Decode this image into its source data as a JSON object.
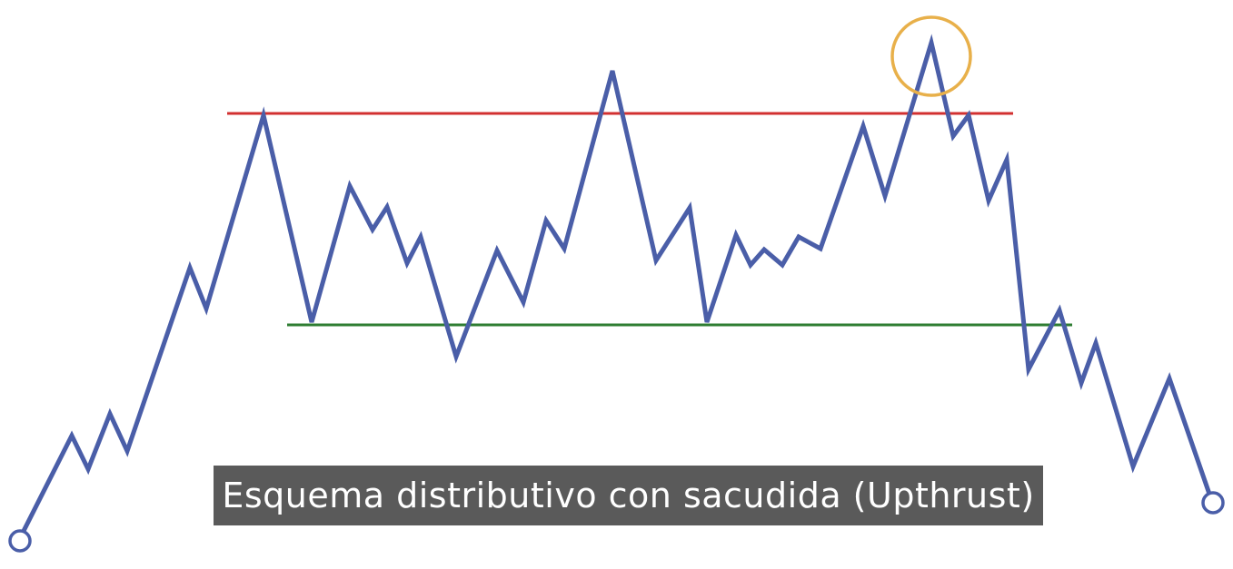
{
  "caption": "Esquema distributivo con sacudida (Upthrust)",
  "colors": {
    "price_line": "#4a5ea8",
    "resistance": "#d23030",
    "support": "#2e7d32",
    "highlight_circle": "#e8b04a",
    "caption_bg": "#5a5a5a",
    "caption_text": "#ffffff"
  }
}
